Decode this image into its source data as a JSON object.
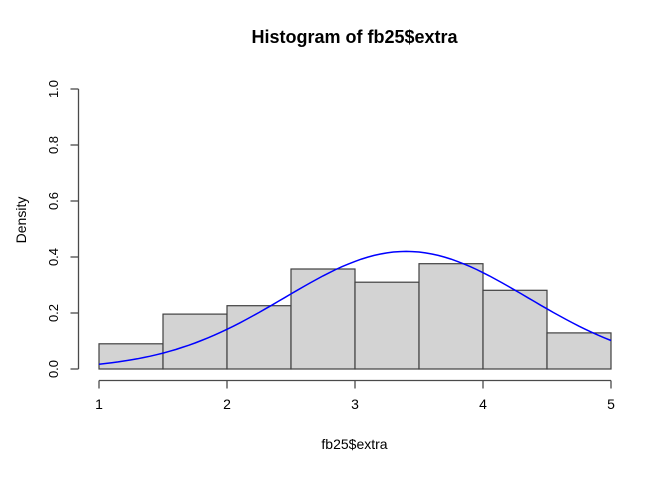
{
  "colors": {
    "background": "#ffffff",
    "bar_fill": "#d3d3d3",
    "bar_border": "#404040",
    "axis": "#4a4a4a",
    "text": "#000000",
    "curve": "#0000ff"
  },
  "chart_data": {
    "type": "bar",
    "subtype": "histogram",
    "title": "Histogram of fb25$extra",
    "xlabel": "fb25$extra",
    "ylabel": "Density",
    "xlim": [
      1,
      5
    ],
    "ylim": [
      0,
      1
    ],
    "grid": false,
    "legend": false,
    "bin_breaks": [
      1,
      1.5,
      2,
      2.5,
      3,
      3.5,
      4,
      4.5,
      5
    ],
    "bin_densities": [
      0.09,
      0.196,
      0.226,
      0.357,
      0.31,
      0.376,
      0.281,
      0.129
    ],
    "x_ticks": [
      "1",
      "2",
      "3",
      "4",
      "5"
    ],
    "y_ticks": [
      "0.0",
      "0.2",
      "0.4",
      "0.6",
      "0.8",
      "1.0"
    ],
    "overlay_curve": {
      "name": "normal-density-curve",
      "shape": "normal",
      "mean": 3.4,
      "sd": 0.95,
      "peak_density": 0.42,
      "x_range": [
        1,
        5
      ],
      "points": [
        [
          1.0,
          0.017
        ],
        [
          1.25,
          0.032
        ],
        [
          1.5,
          0.057
        ],
        [
          1.75,
          0.093
        ],
        [
          2.0,
          0.142
        ],
        [
          2.25,
          0.202
        ],
        [
          2.5,
          0.268
        ],
        [
          2.75,
          0.332
        ],
        [
          3.0,
          0.384
        ],
        [
          3.25,
          0.415
        ],
        [
          3.5,
          0.418
        ],
        [
          3.75,
          0.392
        ],
        [
          4.0,
          0.344
        ],
        [
          4.25,
          0.281
        ],
        [
          4.5,
          0.215
        ],
        [
          4.75,
          0.153
        ],
        [
          5.0,
          0.102
        ]
      ]
    }
  }
}
